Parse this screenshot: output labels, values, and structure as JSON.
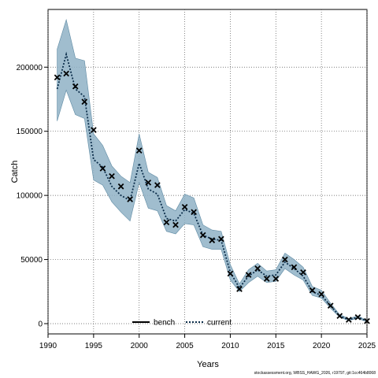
{
  "chart_data": {
    "type": "line",
    "xlabel": "Years",
    "ylabel": "Catch",
    "xlim": [
      1990,
      2025
    ],
    "ylim": [
      -8000,
      245000
    ],
    "grid": true,
    "x_ticks": [
      1990,
      1995,
      2000,
      2005,
      2010,
      2015,
      2020,
      2025
    ],
    "y_ticks": [
      0,
      50000,
      100000,
      150000,
      200000
    ],
    "legend": {
      "position": "bottom-center"
    },
    "colors": {
      "band_outer": "#8fb1c6",
      "band_inner": "#a7c6d8",
      "band_edge": "#5e8aa3",
      "current_line": "#0b2d4a"
    },
    "series": [
      {
        "name": "bench",
        "style": "solid",
        "color": "#000000",
        "x": [
          1991,
          1992,
          1993,
          1994,
          1995,
          1996,
          1997,
          1998,
          1999,
          2000,
          2001,
          2002,
          2003,
          2004,
          2005,
          2006,
          2007,
          2008,
          2009,
          2010,
          2011,
          2012,
          2013,
          2014,
          2015,
          2016,
          2017,
          2018,
          2019,
          2020,
          2021,
          2022,
          2023,
          2024,
          2025
        ],
        "y": [
          192000,
          195000,
          185000,
          173000,
          151000,
          121000,
          115000,
          107000,
          97000,
          135000,
          110000,
          108000,
          79000,
          77000,
          91000,
          87000,
          69000,
          65000,
          66000,
          39000,
          27000,
          38000,
          43000,
          35000,
          35000,
          50000,
          44000,
          40000,
          26000,
          23000,
          14000,
          6000,
          3000,
          5000,
          2000
        ]
      },
      {
        "name": "current",
        "style": "dotted",
        "color": "#0b2d4a",
        "x": [
          1991,
          1992,
          1993,
          1994,
          1995,
          1996,
          1997,
          1998,
          1999,
          2000,
          2001,
          2002,
          2003,
          2004,
          2005,
          2006,
          2007,
          2008,
          2009,
          2010,
          2011,
          2012,
          2013,
          2014,
          2015,
          2016,
          2017,
          2018,
          2019,
          2020,
          2021,
          2022,
          2023,
          2024,
          2025
        ],
        "y": [
          183000,
          210000,
          183000,
          177000,
          128000,
          122000,
          107000,
          100000,
          96000,
          125000,
          105000,
          101000,
          82000,
          80000,
          89000,
          86000,
          69000,
          66000,
          65000,
          40000,
          28000,
          37000,
          42000,
          37000,
          38000,
          48000,
          43000,
          37000,
          25000,
          22000,
          14000,
          6000,
          3000,
          5000,
          2000
        ]
      }
    ],
    "band": {
      "x": [
        1991,
        1992,
        1993,
        1994,
        1995,
        1996,
        1997,
        1998,
        1999,
        2000,
        2001,
        2002,
        2003,
        2004,
        2005,
        2006,
        2007,
        2008,
        2009,
        2010,
        2011,
        2012,
        2013,
        2014,
        2015,
        2016,
        2017,
        2018,
        2019,
        2020,
        2021,
        2022,
        2023,
        2024,
        2025
      ],
      "lower": [
        158000,
        182000,
        163000,
        160000,
        112000,
        108000,
        95000,
        87000,
        80000,
        110000,
        90000,
        88000,
        72000,
        70000,
        78000,
        77000,
        60000,
        58000,
        58000,
        34000,
        25000,
        32000,
        37000,
        32000,
        33000,
        43000,
        38000,
        34000,
        22000,
        20000,
        12000,
        5000,
        2500,
        4000,
        1500
      ],
      "upper": [
        214000,
        237000,
        207000,
        205000,
        148000,
        139000,
        123000,
        115000,
        110000,
        148000,
        118000,
        114000,
        92000,
        88000,
        101000,
        98000,
        77000,
        73000,
        72000,
        46000,
        31000,
        42000,
        47000,
        41000,
        42000,
        55000,
        50000,
        44000,
        29000,
        26000,
        16000,
        7000,
        4000,
        6000,
        2500
      ]
    }
  },
  "footnote": "stockassessment.org, WBSS_HAWG_2026, r19797, git:1cc464b8068"
}
